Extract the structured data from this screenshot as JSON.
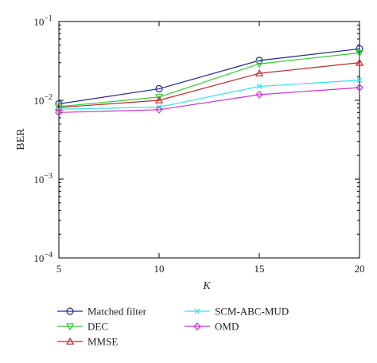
{
  "chart_data": {
    "type": "line",
    "title": "",
    "xlabel": "K",
    "ylabel": "BER",
    "x": [
      5,
      10,
      15,
      20
    ],
    "xlim": [
      5,
      20
    ],
    "ylim": [
      0.0001,
      0.1
    ],
    "yscale": "log",
    "xticks": [
      5,
      10,
      15,
      20
    ],
    "yticks": [
      {
        "base": "10",
        "exp": "−4",
        "value": 0.0001
      },
      {
        "base": "10",
        "exp": "−3",
        "value": 0.001
      },
      {
        "base": "10",
        "exp": "−2",
        "value": 0.01
      },
      {
        "base": "10",
        "exp": "−1",
        "value": 0.1
      }
    ],
    "grid": false,
    "legend_position": "below",
    "series": [
      {
        "name": "Matched filter",
        "values": [
          0.009,
          0.014,
          0.032,
          0.045
        ],
        "color": "#1f2a8c",
        "marker": "circle"
      },
      {
        "name": "DEC",
        "values": [
          0.0083,
          0.011,
          0.029,
          0.04
        ],
        "color": "#2ecc2e",
        "marker": "triangle-down"
      },
      {
        "name": "MMSE",
        "values": [
          0.0081,
          0.01,
          0.022,
          0.03
        ],
        "color": "#c0282d",
        "marker": "triangle-up"
      },
      {
        "name": "SCM-ABC-MUD",
        "values": [
          0.0077,
          0.0082,
          0.015,
          0.018
        ],
        "color": "#33e0f0",
        "marker": "x"
      },
      {
        "name": "OMD",
        "values": [
          0.007,
          0.0076,
          0.0118,
          0.0145
        ],
        "color": "#cc33cc",
        "marker": "diamond"
      }
    ]
  }
}
